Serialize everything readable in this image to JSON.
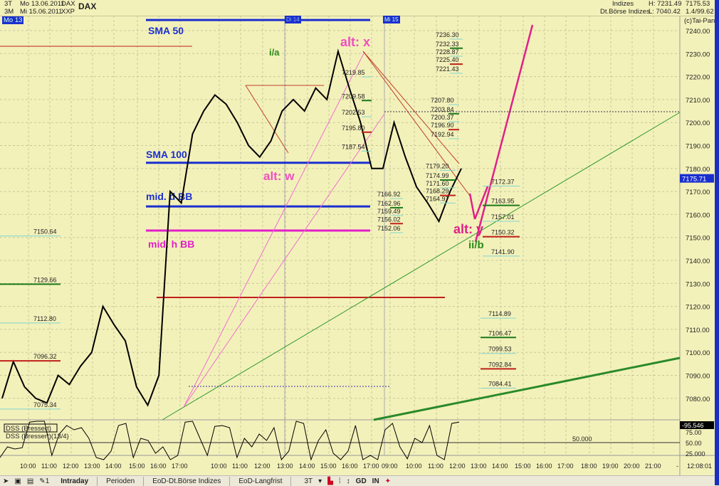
{
  "header": {
    "period1": "3T",
    "date1": "Mo 13.06.2011",
    "sym1": "DAX",
    "period2": "3M",
    "date2": "Mi 15.06.2011",
    "sym2": "XXP",
    "title": "DAX",
    "market1": "Indizes",
    "market2": "Dt.Börse Indizes",
    "high": "H: 7231.49",
    "low": "L: 7040.42",
    "last": "7175.53",
    "ratio": "1.4/99.62",
    "copyright": "(c)Tai-Pan",
    "day_marker": "Mo 13",
    "day_marker2": "Di 14",
    "day_marker3": "Mi 15"
  },
  "chart_data": {
    "type": "line",
    "title": "DAX",
    "ylim": [
      7075,
      7245
    ],
    "y_ticks": [
      "7240.00",
      "7230.00",
      "7220.00",
      "7210.00",
      "7200.00",
      "7190.00",
      "7180.00",
      "7170.00",
      "7160.00",
      "7150.00",
      "7140.00",
      "7130.00",
      "7120.00",
      "7110.00",
      "7100.00",
      "7090.00",
      "7080.00"
    ],
    "current_price": "7175.71",
    "price_series": [
      7080,
      7096,
      7085,
      7080,
      7078,
      7090,
      7086,
      7094,
      7100,
      7120,
      7112,
      7105,
      7085,
      7077,
      7090,
      7170,
      7165,
      7195,
      7205,
      7212,
      7208,
      7200,
      7190,
      7185,
      7192,
      7205,
      7210,
      7205,
      7215,
      7210,
      7231,
      7215,
      7200,
      7180,
      7180,
      7200,
      7185,
      7172,
      7165,
      7157,
      7170,
      7180
    ],
    "oscillator": {
      "name": "DSS (Bressert)",
      "params": "DSS (Bressert)(13/4)",
      "current": "-95.546",
      "ticks": [
        "75.00",
        "50.00",
        "25.000"
      ],
      "midline_label": "50.000",
      "values": [
        15,
        40,
        35,
        38,
        98,
        100,
        100,
        20,
        70,
        90,
        80,
        85,
        60,
        15,
        10,
        30,
        90,
        95,
        15,
        60,
        55,
        25,
        40,
        10,
        20,
        98,
        100,
        60,
        20,
        88,
        90,
        85,
        15,
        60,
        40,
        70,
        55,
        85,
        10,
        30,
        100,
        95,
        10,
        55,
        80,
        25,
        10,
        30,
        90,
        10,
        20,
        10,
        80,
        95,
        40,
        12,
        60,
        50,
        90,
        20,
        10,
        95,
        98
      ]
    },
    "time_labels": [
      "10:00",
      "11:00",
      "12:00",
      "13:00",
      "14:00",
      "15:00",
      "16:00",
      "17:00",
      "10:00",
      "11:00",
      "12:00",
      "13:00",
      "14:00",
      "15:00",
      "16:00",
      "17:00",
      "09:00",
      "10:00",
      "11:00",
      "12:00",
      "13:00",
      "14:00",
      "15:00",
      "16:00",
      "17:00",
      "18:00",
      "19:00",
      "20:00",
      "21:00",
      "-",
      "12:08:01"
    ],
    "levels": [
      {
        "name": "SMA 50",
        "price": 7244.6,
        "color": "#1a2fd0"
      },
      {
        "name": "SMA 100",
        "price": 7182.5,
        "color": "#1a2fd0"
      },
      {
        "name": "mid. d BB",
        "price": 7163.5,
        "color": "#1a2fd0"
      },
      {
        "name": "mid. h BB",
        "price": 7153,
        "color": "#e020c8"
      }
    ],
    "annotations": [
      {
        "text": "i/a",
        "color": "#2a8a1a"
      },
      {
        "text": "alt: x",
        "color": "#f050c0"
      },
      {
        "text": "alt: w",
        "color": "#f050c0"
      },
      {
        "text": "alt: y",
        "color": "#e0208a"
      },
      {
        "text": "ii/b",
        "color": "#2a8a1a"
      }
    ],
    "fib_groups": [
      {
        "labels": [
          "7150.64",
          "7129.66",
          "7112.80",
          "7096.32",
          "7075.34"
        ],
        "colors": [
          "#7fd6d0",
          "#1a7a1a",
          "#7fd6d0",
          "#c0201a",
          "#7fd6d0"
        ]
      },
      {
        "labels": [
          "7219.85",
          "7209.58",
          "7202.53",
          "7195.80",
          "7187.54"
        ],
        "colors": [
          "#7fd6d0",
          "#1a7a1a",
          "#7fd6d0",
          "#c0201a",
          "#7fd6d0"
        ]
      },
      {
        "labels": [
          "7236.30",
          "7232.33",
          "7228.87",
          "7225.40",
          "7221.43"
        ],
        "colors": [
          "#7fd6d0",
          "#1a7a1a",
          "#7fd6d0",
          "#c0201a",
          "#7fd6d0"
        ]
      },
      {
        "labels": [
          "7207.80",
          "7203.84",
          "7200.37",
          "7196.90",
          "7192.94"
        ],
        "colors": [
          "#7fd6d0",
          "#1a7a1a",
          "#7fd6d0",
          "#c0201a",
          "#7fd6d0"
        ]
      },
      {
        "labels": [
          "7166.92",
          "7162.96",
          "7159.49",
          "7156.02",
          "7152.06"
        ],
        "colors": [
          "#7fd6d0",
          "#1a7a1a",
          "#7fd6d0",
          "#c0201a",
          "#7fd6d0"
        ]
      },
      {
        "labels": [
          "7179.20",
          "7174.99",
          "7171.60",
          "7168.29",
          "7164.97"
        ],
        "colors": [
          "#7fd6d0",
          "#1a7a1a",
          "#7fd6d0",
          "#c0201a",
          "#7fd6d0"
        ]
      },
      {
        "labels": [
          "7172.37",
          "7163.95",
          "7157.01",
          "7150.32",
          "7141.90"
        ],
        "colors": [
          "#7fd6d0",
          "#1a7a1a",
          "#7fd6d0",
          "#c0201a",
          "#7fd6d0"
        ]
      },
      {
        "labels": [
          "7114.89",
          "7106.47",
          "7099.53",
          "7092.84",
          "7084.41"
        ],
        "colors": [
          "#7fd6d0",
          "#1a7a1a",
          "#7fd6d0",
          "#c0201a",
          "#7fd6d0"
        ]
      }
    ]
  },
  "toolbar": {
    "counter": "1",
    "tabs": [
      "Intraday",
      "Perioden",
      "EoD-Dt.Börse Indizes",
      "EoD-Langfrist"
    ],
    "period": "3T",
    "gd": "GD",
    "in": "IN"
  }
}
